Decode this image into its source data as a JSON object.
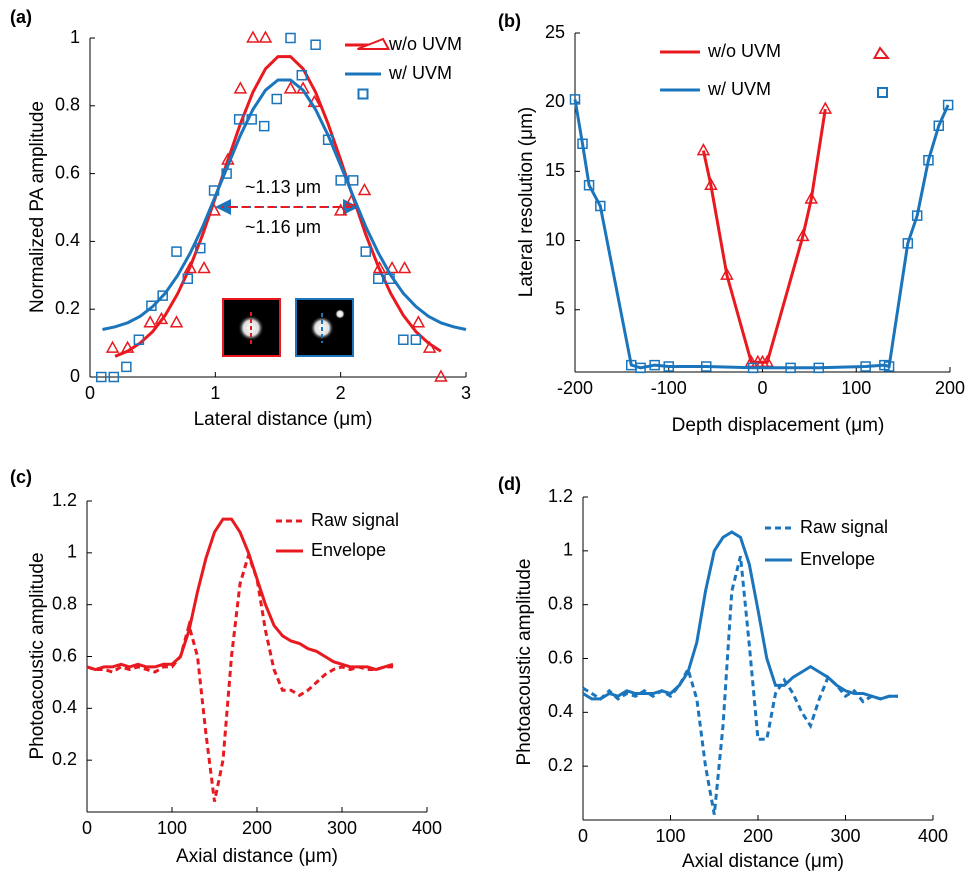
{
  "chart_data": [
    {
      "type": "scatter",
      "panel_label": "(a)",
      "xlabel": "Lateral distance (μm)",
      "ylabel": "Normalized PA amplitude",
      "xlim": [
        0,
        3
      ],
      "ylim": [
        0,
        1
      ],
      "xticks": [
        0,
        1,
        2,
        3
      ],
      "yticks": [
        0,
        0.2,
        0.4,
        0.6,
        0.8,
        1
      ],
      "series": [
        {
          "name": "w/o UVM",
          "color": "#e8191f",
          "marker": "triangle",
          "x": [
            0.18,
            0.3,
            0.48,
            0.57,
            0.69,
            0.8,
            0.91,
            0.99,
            1.1,
            1.2,
            1.3,
            1.4,
            1.6,
            1.7,
            1.79,
            2.0,
            2.09,
            2.19,
            2.31,
            2.41,
            2.51,
            2.62,
            2.71,
            2.8
          ],
          "values": [
            0.085,
            0.085,
            0.16,
            0.17,
            0.16,
            0.32,
            0.32,
            0.49,
            0.64,
            0.85,
            1,
            1,
            0.85,
            0.85,
            0.81,
            0.49,
            0.52,
            0.55,
            0.32,
            0.32,
            0.32,
            0.16,
            0.085,
            0
          ],
          "fit_x": [
            0.2,
            0.3,
            0.4,
            0.5,
            0.6,
            0.7,
            0.8,
            0.9,
            1.0,
            1.1,
            1.2,
            1.3,
            1.4,
            1.5,
            1.6,
            1.7,
            1.8,
            1.9,
            2.0,
            2.1,
            2.2,
            2.3,
            2.4,
            2.5,
            2.6,
            2.7,
            2.8
          ],
          "fit_values": [
            0.061,
            0.076,
            0.1,
            0.134,
            0.182,
            0.246,
            0.326,
            0.421,
            0.529,
            0.64,
            0.747,
            0.84,
            0.909,
            0.945,
            0.945,
            0.909,
            0.84,
            0.747,
            0.64,
            0.529,
            0.421,
            0.326,
            0.246,
            0.182,
            0.134,
            0.1,
            0.076
          ]
        },
        {
          "name": "w/ UVM",
          "color": "#1a75bc",
          "marker": "square",
          "x": [
            0.09,
            0.19,
            0.29,
            0.39,
            0.49,
            0.58,
            0.69,
            0.78,
            0.88,
            0.99,
            1.09,
            1.19,
            1.29,
            1.39,
            1.49,
            1.6,
            1.69,
            1.8,
            1.9,
            2.0,
            2.1,
            2.2,
            2.3,
            2.39,
            2.5,
            2.6
          ],
          "values": [
            0,
            0,
            0.03,
            0.11,
            0.21,
            0.24,
            0.37,
            0.29,
            0.38,
            0.55,
            0.6,
            0.76,
            0.76,
            0.74,
            0.82,
            1,
            0.89,
            0.98,
            0.7,
            0.58,
            0.58,
            0.37,
            0.29,
            0.29,
            0.11,
            0.11
          ],
          "fit_x": [
            0.1,
            0.2,
            0.3,
            0.4,
            0.5,
            0.6,
            0.7,
            0.8,
            0.9,
            1.0,
            1.1,
            1.2,
            1.3,
            1.4,
            1.5,
            1.6,
            1.7,
            1.8,
            1.9,
            2.0,
            2.1,
            2.2,
            2.3,
            2.4,
            2.5,
            2.6,
            2.7,
            2.8,
            2.9,
            3.0
          ],
          "fit_values": [
            0.14,
            0.148,
            0.16,
            0.179,
            0.208,
            0.247,
            0.3,
            0.366,
            0.444,
            0.533,
            0.624,
            0.713,
            0.789,
            0.846,
            0.876,
            0.876,
            0.846,
            0.789,
            0.713,
            0.624,
            0.533,
            0.444,
            0.366,
            0.3,
            0.247,
            0.208,
            0.179,
            0.16,
            0.148,
            0.14
          ]
        }
      ],
      "annotations": [
        "~1.13 μm",
        "~1.16 μm"
      ]
    },
    {
      "type": "line",
      "panel_label": "(b)",
      "xlabel": "Depth displacement (μm)",
      "ylabel": "Lateral resolution (μm)",
      "xlim": [
        -200,
        200
      ],
      "ylim": [
        0.5,
        25
      ],
      "xticks": [
        -200,
        -100,
        0,
        100,
        200
      ],
      "yticks": [
        5,
        10,
        15,
        20,
        25
      ],
      "series": [
        {
          "name": "w/o UVM",
          "color": "#e8191f",
          "marker": "triangle",
          "linestyle": "solid",
          "x": [
            -63,
            -55,
            -38,
            -12,
            -5,
            0,
            5,
            43,
            52,
            67
          ],
          "values": [
            16.5,
            14,
            7.5,
            1.2,
            1.2,
            1.2,
            1.2,
            10.3,
            13,
            19.5
          ]
        },
        {
          "name": "w/ UVM",
          "color": "#1a75bc",
          "marker": "square",
          "linestyle": "solid",
          "x": [
            -200,
            -192,
            -185,
            -173,
            -140,
            -130,
            -115,
            -100,
            -60,
            -10,
            30,
            60,
            110,
            130,
            135,
            155,
            165,
            177,
            188,
            198
          ],
          "values": [
            20.2,
            17,
            14,
            12.5,
            1.0,
            0.8,
            1.0,
            0.9,
            0.9,
            0.8,
            0.8,
            0.8,
            0.9,
            1.0,
            0.9,
            9.8,
            11.8,
            15.8,
            18.3,
            19.8
          ]
        }
      ]
    },
    {
      "type": "line",
      "panel_label": "(c)",
      "xlabel": "Axial distance (μm)",
      "ylabel": "Photoacoustic amplitude",
      "xlim": [
        0,
        400
      ],
      "ylim": [
        0,
        1.2
      ],
      "xticks": [
        0,
        100,
        200,
        300,
        400
      ],
      "yticks": [
        0.2,
        0.4,
        0.6,
        0.8,
        1,
        1.2
      ],
      "x": [
        0,
        10,
        20,
        30,
        40,
        50,
        60,
        70,
        80,
        90,
        100,
        110,
        120,
        130,
        140,
        150,
        160,
        170,
        180,
        190,
        200,
        210,
        220,
        230,
        240,
        250,
        260,
        270,
        280,
        290,
        300,
        310,
        320,
        330,
        340,
        350,
        360
      ],
      "series": [
        {
          "name": "Raw signal",
          "color": "#e8191f",
          "linestyle": "dashed",
          "values": [
            0.56,
            0.55,
            0.55,
            0.54,
            0.56,
            0.55,
            0.56,
            0.55,
            0.54,
            0.56,
            0.56,
            0.6,
            0.72,
            0.6,
            0.3,
            0.04,
            0.2,
            0.6,
            0.88,
            0.99,
            0.9,
            0.7,
            0.55,
            0.47,
            0.47,
            0.45,
            0.47,
            0.5,
            0.53,
            0.55,
            0.56,
            0.55,
            0.56,
            0.55,
            0.55,
            0.56,
            0.56
          ]
        },
        {
          "name": "Envelope",
          "color": "#e8191f",
          "linestyle": "solid",
          "values": [
            0.56,
            0.55,
            0.56,
            0.56,
            0.57,
            0.56,
            0.57,
            0.56,
            0.56,
            0.57,
            0.57,
            0.6,
            0.7,
            0.85,
            0.98,
            1.08,
            1.13,
            1.13,
            1.08,
            1.0,
            0.9,
            0.8,
            0.72,
            0.68,
            0.66,
            0.65,
            0.63,
            0.62,
            0.6,
            0.58,
            0.57,
            0.56,
            0.56,
            0.56,
            0.55,
            0.56,
            0.57
          ]
        }
      ]
    },
    {
      "type": "line",
      "panel_label": "(d)",
      "xlabel": "Axial distance (μm)",
      "ylabel": "Photoacoustic amplitude",
      "xlim": [
        0,
        400
      ],
      "ylim": [
        0,
        1.2
      ],
      "xticks": [
        0,
        100,
        200,
        300,
        400
      ],
      "yticks": [
        0.2,
        0.4,
        0.6,
        0.8,
        1,
        1.2
      ],
      "x": [
        0,
        10,
        20,
        30,
        40,
        50,
        60,
        70,
        80,
        90,
        100,
        110,
        120,
        130,
        140,
        150,
        160,
        170,
        180,
        190,
        200,
        210,
        220,
        230,
        240,
        250,
        260,
        270,
        280,
        290,
        300,
        310,
        320,
        330,
        340,
        350,
        360
      ],
      "series": [
        {
          "name": "Raw signal",
          "color": "#1a75bc",
          "linestyle": "dashed",
          "values": [
            0.49,
            0.47,
            0.45,
            0.48,
            0.45,
            0.47,
            0.46,
            0.48,
            0.46,
            0.48,
            0.46,
            0.5,
            0.56,
            0.45,
            0.2,
            0.02,
            0.35,
            0.85,
            0.98,
            0.65,
            0.3,
            0.3,
            0.47,
            0.52,
            0.47,
            0.4,
            0.35,
            0.45,
            0.53,
            0.5,
            0.46,
            0.48,
            0.44,
            0.46,
            0.45,
            0.46,
            0.46
          ]
        },
        {
          "name": "Envelope",
          "color": "#1a75bc",
          "linestyle": "solid",
          "values": [
            0.47,
            0.45,
            0.45,
            0.47,
            0.46,
            0.48,
            0.47,
            0.47,
            0.47,
            0.48,
            0.47,
            0.5,
            0.55,
            0.66,
            0.85,
            1.0,
            1.05,
            1.07,
            1.05,
            0.95,
            0.78,
            0.6,
            0.5,
            0.5,
            0.53,
            0.55,
            0.57,
            0.55,
            0.53,
            0.5,
            0.48,
            0.47,
            0.47,
            0.46,
            0.45,
            0.46,
            0.46
          ]
        }
      ]
    }
  ]
}
